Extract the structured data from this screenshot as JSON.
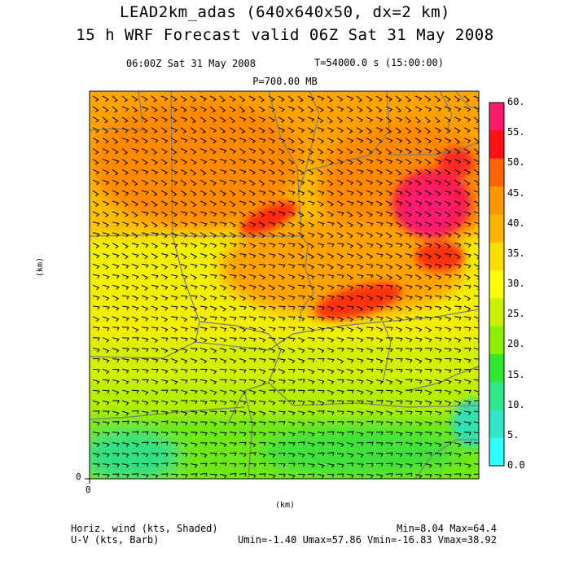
{
  "title": {
    "line1": "LEAD2km_adas (640x640x50, dx=2 km)",
    "line2": "15 h WRF Forecast valid 06Z Sat 31 May 2008"
  },
  "subtitle": {
    "time": "06:00Z Sat 31 May 2008",
    "model_time": "T=54000.0 s (15:00:00)",
    "level": "P=700.00 MB"
  },
  "axes": {
    "ylabel": "(km)",
    "xlabel": "(km)",
    "y_origin": "0",
    "x_origin": "0"
  },
  "footer": {
    "shaded_label": "Horiz. wind (kts, Shaded)",
    "barb_label": "U-V (kts, Barb)",
    "minmax": "Min=8.04 Max=64.4",
    "uv_stats": "Umin=-1.40 Umax=57.86 Vmin=-16.83 Vmax=38.92"
  },
  "colorbar": {
    "labels": [
      "60.",
      "55.",
      "50.",
      "45.",
      "40.",
      "35.",
      "30.",
      "25.",
      "20.",
      "15.",
      "10.",
      "5.",
      "0.0"
    ],
    "colors": [
      "#ff1a6e",
      "#ff1010",
      "#ff6400",
      "#ff9600",
      "#ffb400",
      "#ffdc00",
      "#ffff00",
      "#c8f000",
      "#8cf000",
      "#32e632",
      "#32e68c",
      "#32e6c8",
      "#32ffff"
    ]
  },
  "colors": {
    "state_boundary": "#7a7a7a",
    "barb": "#000000"
  }
}
